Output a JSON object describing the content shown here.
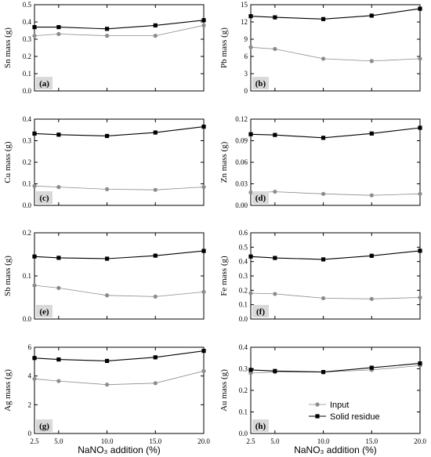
{
  "chart_data": [
    {
      "type": "line",
      "panel": "(a)",
      "ylabel": "Sn mass (g)",
      "x": [
        2.5,
        5.0,
        10.0,
        15.0,
        20.0
      ],
      "ylim": [
        0,
        0.5
      ],
      "yticks": [
        "0.0",
        "0.1",
        "0.2",
        "0.3",
        "0.4",
        "0.5"
      ],
      "series": [
        {
          "name": "Input",
          "values": [
            0.32,
            0.33,
            0.32,
            0.32,
            0.38
          ]
        },
        {
          "name": "Solid residue",
          "values": [
            0.37,
            0.37,
            0.36,
            0.38,
            0.41
          ]
        }
      ]
    },
    {
      "type": "line",
      "panel": "(b)",
      "ylabel": "Pb mass (g)",
      "x": [
        2.5,
        5.0,
        10.0,
        15.0,
        20.0
      ],
      "ylim": [
        0,
        15
      ],
      "yticks": [
        "0",
        "3",
        "6",
        "9",
        "12",
        "15"
      ],
      "series": [
        {
          "name": "Input",
          "values": [
            7.6,
            7.3,
            5.6,
            5.2,
            5.6
          ]
        },
        {
          "name": "Solid residue",
          "values": [
            13.0,
            12.8,
            12.5,
            13.1,
            14.3
          ]
        }
      ]
    },
    {
      "type": "line",
      "panel": "(c)",
      "ylabel": "Cu mass (g)",
      "x": [
        2.5,
        5.0,
        10.0,
        15.0,
        20.0
      ],
      "ylim": [
        0,
        0.4
      ],
      "yticks": [
        "0.0",
        "0.1",
        "0.2",
        "0.3",
        "0.4"
      ],
      "series": [
        {
          "name": "Input",
          "values": [
            0.09,
            0.085,
            0.075,
            0.072,
            0.085
          ]
        },
        {
          "name": "Solid residue",
          "values": [
            0.333,
            0.328,
            0.322,
            0.338,
            0.365
          ]
        }
      ]
    },
    {
      "type": "line",
      "panel": "(d)",
      "ylabel": "Zn mass (g)",
      "x": [
        2.5,
        5.0,
        10.0,
        15.0,
        20.0
      ],
      "ylim": [
        0,
        0.12
      ],
      "yticks": [
        "0.00",
        "0.03",
        "0.06",
        "0.09",
        "0.12"
      ],
      "series": [
        {
          "name": "Input",
          "values": [
            0.018,
            0.019,
            0.016,
            0.014,
            0.016
          ]
        },
        {
          "name": "Solid residue",
          "values": [
            0.099,
            0.098,
            0.094,
            0.1,
            0.108
          ]
        }
      ]
    },
    {
      "type": "line",
      "panel": "(e)",
      "ylabel": "Sb mass (g)",
      "x": [
        2.5,
        5.0,
        10.0,
        15.0,
        20.0
      ],
      "ylim": [
        0,
        0.2
      ],
      "yticks": [
        "0.0",
        "0.1",
        "0.2"
      ],
      "series": [
        {
          "name": "Input",
          "values": [
            0.078,
            0.072,
            0.055,
            0.052,
            0.063
          ]
        },
        {
          "name": "Solid residue",
          "values": [
            0.145,
            0.142,
            0.14,
            0.147,
            0.158
          ]
        }
      ]
    },
    {
      "type": "line",
      "panel": "(f)",
      "ylabel": "Fe mass (g)",
      "x": [
        2.5,
        5.0,
        10.0,
        15.0,
        20.0
      ],
      "ylim": [
        0,
        0.6
      ],
      "yticks": [
        "0.0",
        "0.1",
        "0.2",
        "0.3",
        "0.4",
        "0.5",
        "0.6"
      ],
      "series": [
        {
          "name": "Input",
          "values": [
            0.18,
            0.175,
            0.145,
            0.14,
            0.15
          ]
        },
        {
          "name": "Solid residue",
          "values": [
            0.435,
            0.425,
            0.415,
            0.44,
            0.475
          ]
        }
      ]
    },
    {
      "type": "line",
      "panel": "(g)",
      "ylabel": "Ag mass (g)",
      "x": [
        2.5,
        5.0,
        10.0,
        15.0,
        20.0
      ],
      "ylim": [
        0,
        6
      ],
      "yticks": [
        "0",
        "2",
        "4",
        "6"
      ],
      "series": [
        {
          "name": "Input",
          "values": [
            3.8,
            3.65,
            3.4,
            3.5,
            4.35
          ]
        },
        {
          "name": "Solid residue",
          "values": [
            5.25,
            5.15,
            5.05,
            5.3,
            5.75
          ]
        }
      ]
    },
    {
      "type": "line",
      "panel": "(h)",
      "ylabel": "Au mass (g)",
      "x": [
        2.5,
        5.0,
        10.0,
        15.0,
        20.0
      ],
      "ylim": [
        0,
        0.4
      ],
      "yticks": [
        "0.0",
        "0.1",
        "0.2",
        "0.3",
        "0.4"
      ],
      "series": [
        {
          "name": "Input",
          "values": [
            0.28,
            0.285,
            0.285,
            0.295,
            0.315
          ]
        },
        {
          "name": "Solid residue",
          "values": [
            0.295,
            0.29,
            0.285,
            0.305,
            0.325
          ]
        }
      ]
    }
  ],
  "shared": {
    "xlabel": "NaNO₃ addition (%)",
    "xticks": [
      "2.5",
      "5.0",
      "10.0",
      "15.0",
      "20.0"
    ],
    "xlim": [
      2.5,
      20.0
    ],
    "legend": {
      "placement": "bottom-right of panel (h)",
      "items": [
        "Input",
        "Solid residue"
      ]
    },
    "colors": {
      "input": "#8c8c8c",
      "solid_residue": "#000000",
      "panel_label_bg": "#d9d9d9"
    }
  }
}
